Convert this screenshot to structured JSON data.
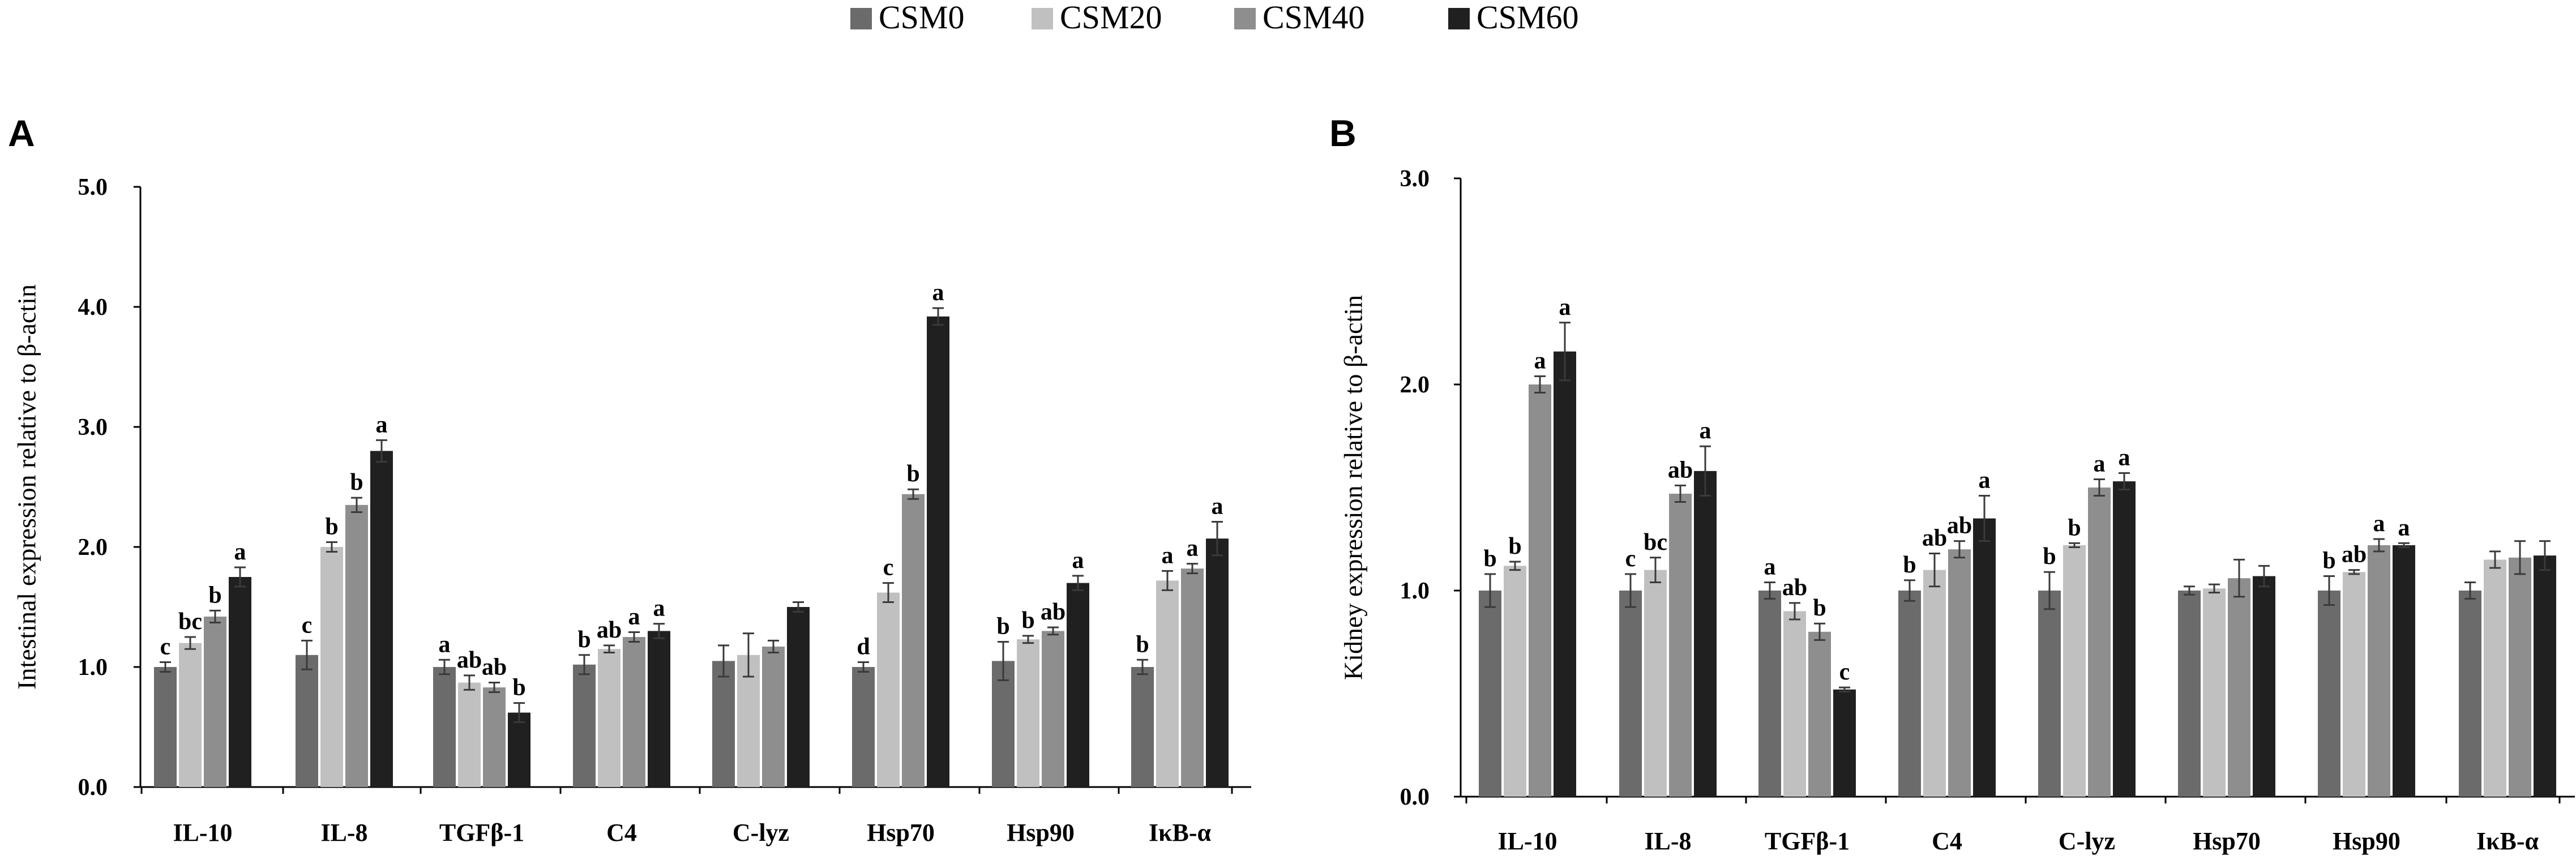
{
  "legend": [
    {
      "label": "CSM0",
      "color": "#6b6b6b"
    },
    {
      "label": "CSM20",
      "color": "#c0c0c0"
    },
    {
      "label": "CSM40",
      "color": "#8e8e8e"
    },
    {
      "label": "CSM60",
      "color": "#202020"
    }
  ],
  "chart_data": [
    {
      "type": "bar",
      "panel_label": "A",
      "title": "",
      "xlabel": "",
      "ylabel": "Intestinal expression relative to β-actin",
      "ylim": [
        0,
        5
      ],
      "yticks": [
        "0.0",
        "1.0",
        "2.0",
        "3.0",
        "4.0",
        "5.0"
      ],
      "grid": false,
      "categories": [
        "IL-10",
        "IL-8",
        "TGFβ-1",
        "C4",
        "C-lyz",
        "Hsp70",
        "Hsp90",
        "IκB-α"
      ],
      "series": [
        {
          "name": "CSM0",
          "values": [
            1.0,
            1.1,
            1.0,
            1.02,
            1.05,
            1.0,
            1.05,
            1.0
          ],
          "errors": [
            0.04,
            0.12,
            0.06,
            0.08,
            0.13,
            0.04,
            0.16,
            0.06
          ],
          "letters": [
            "c",
            "c",
            "a",
            "b",
            "",
            "d",
            "b",
            "b"
          ]
        },
        {
          "name": "CSM20",
          "values": [
            1.2,
            2.0,
            0.87,
            1.15,
            1.1,
            1.62,
            1.23,
            1.72
          ],
          "errors": [
            0.05,
            0.04,
            0.06,
            0.03,
            0.18,
            0.08,
            0.03,
            0.08
          ],
          "letters": [
            "bc",
            "b",
            "ab",
            "ab",
            "",
            "c",
            "b",
            "a"
          ]
        },
        {
          "name": "CSM40",
          "values": [
            1.42,
            2.35,
            0.83,
            1.25,
            1.17,
            2.44,
            1.3,
            1.82
          ],
          "errors": [
            0.05,
            0.06,
            0.04,
            0.04,
            0.05,
            0.04,
            0.03,
            0.04
          ],
          "letters": [
            "b",
            "b",
            "ab",
            "a",
            "",
            "b",
            "ab",
            "a"
          ]
        },
        {
          "name": "CSM60",
          "values": [
            1.75,
            2.8,
            0.62,
            1.3,
            1.5,
            3.92,
            1.7,
            2.07
          ],
          "errors": [
            0.08,
            0.09,
            0.08,
            0.06,
            0.04,
            0.07,
            0.06,
            0.14
          ],
          "letters": [
            "a",
            "a",
            "b",
            "a",
            "",
            "a",
            "a",
            "a"
          ]
        }
      ]
    },
    {
      "type": "bar",
      "panel_label": "B",
      "title": "",
      "xlabel": "",
      "ylabel": "Kidney expression relative to β-actin",
      "ylim": [
        0,
        3
      ],
      "yticks": [
        "0.0",
        "1.0",
        "2.0",
        "3.0"
      ],
      "grid": false,
      "categories": [
        "IL-10",
        "IL-8",
        "TGFβ-1",
        "C4",
        "C-lyz",
        "Hsp70",
        "Hsp90",
        "IκB-α"
      ],
      "series": [
        {
          "name": "CSM0",
          "values": [
            1.0,
            1.0,
            1.0,
            1.0,
            1.0,
            1.0,
            1.0,
            1.0
          ],
          "errors": [
            0.08,
            0.08,
            0.04,
            0.05,
            0.09,
            0.02,
            0.07,
            0.04
          ],
          "letters": [
            "b",
            "c",
            "a",
            "b",
            "b",
            "",
            "b",
            ""
          ]
        },
        {
          "name": "CSM20",
          "values": [
            1.12,
            1.1,
            0.9,
            1.1,
            1.22,
            1.01,
            1.09,
            1.15
          ],
          "errors": [
            0.02,
            0.06,
            0.04,
            0.08,
            0.01,
            0.02,
            0.01,
            0.04
          ],
          "letters": [
            "b",
            "bc",
            "ab",
            "ab",
            "b",
            "",
            "ab",
            ""
          ]
        },
        {
          "name": "CSM40",
          "values": [
            2.0,
            1.47,
            0.8,
            1.2,
            1.5,
            1.06,
            1.22,
            1.16
          ],
          "errors": [
            0.04,
            0.04,
            0.04,
            0.04,
            0.04,
            0.09,
            0.03,
            0.08
          ],
          "letters": [
            "a",
            "ab",
            "b",
            "ab",
            "a",
            "",
            "a",
            ""
          ]
        },
        {
          "name": "CSM60",
          "values": [
            2.16,
            1.58,
            0.52,
            1.35,
            1.53,
            1.07,
            1.22,
            1.17
          ],
          "errors": [
            0.14,
            0.12,
            0.01,
            0.11,
            0.04,
            0.05,
            0.01,
            0.07
          ],
          "letters": [
            "a",
            "a",
            "c",
            "a",
            "a",
            "",
            "a",
            ""
          ]
        }
      ]
    }
  ]
}
